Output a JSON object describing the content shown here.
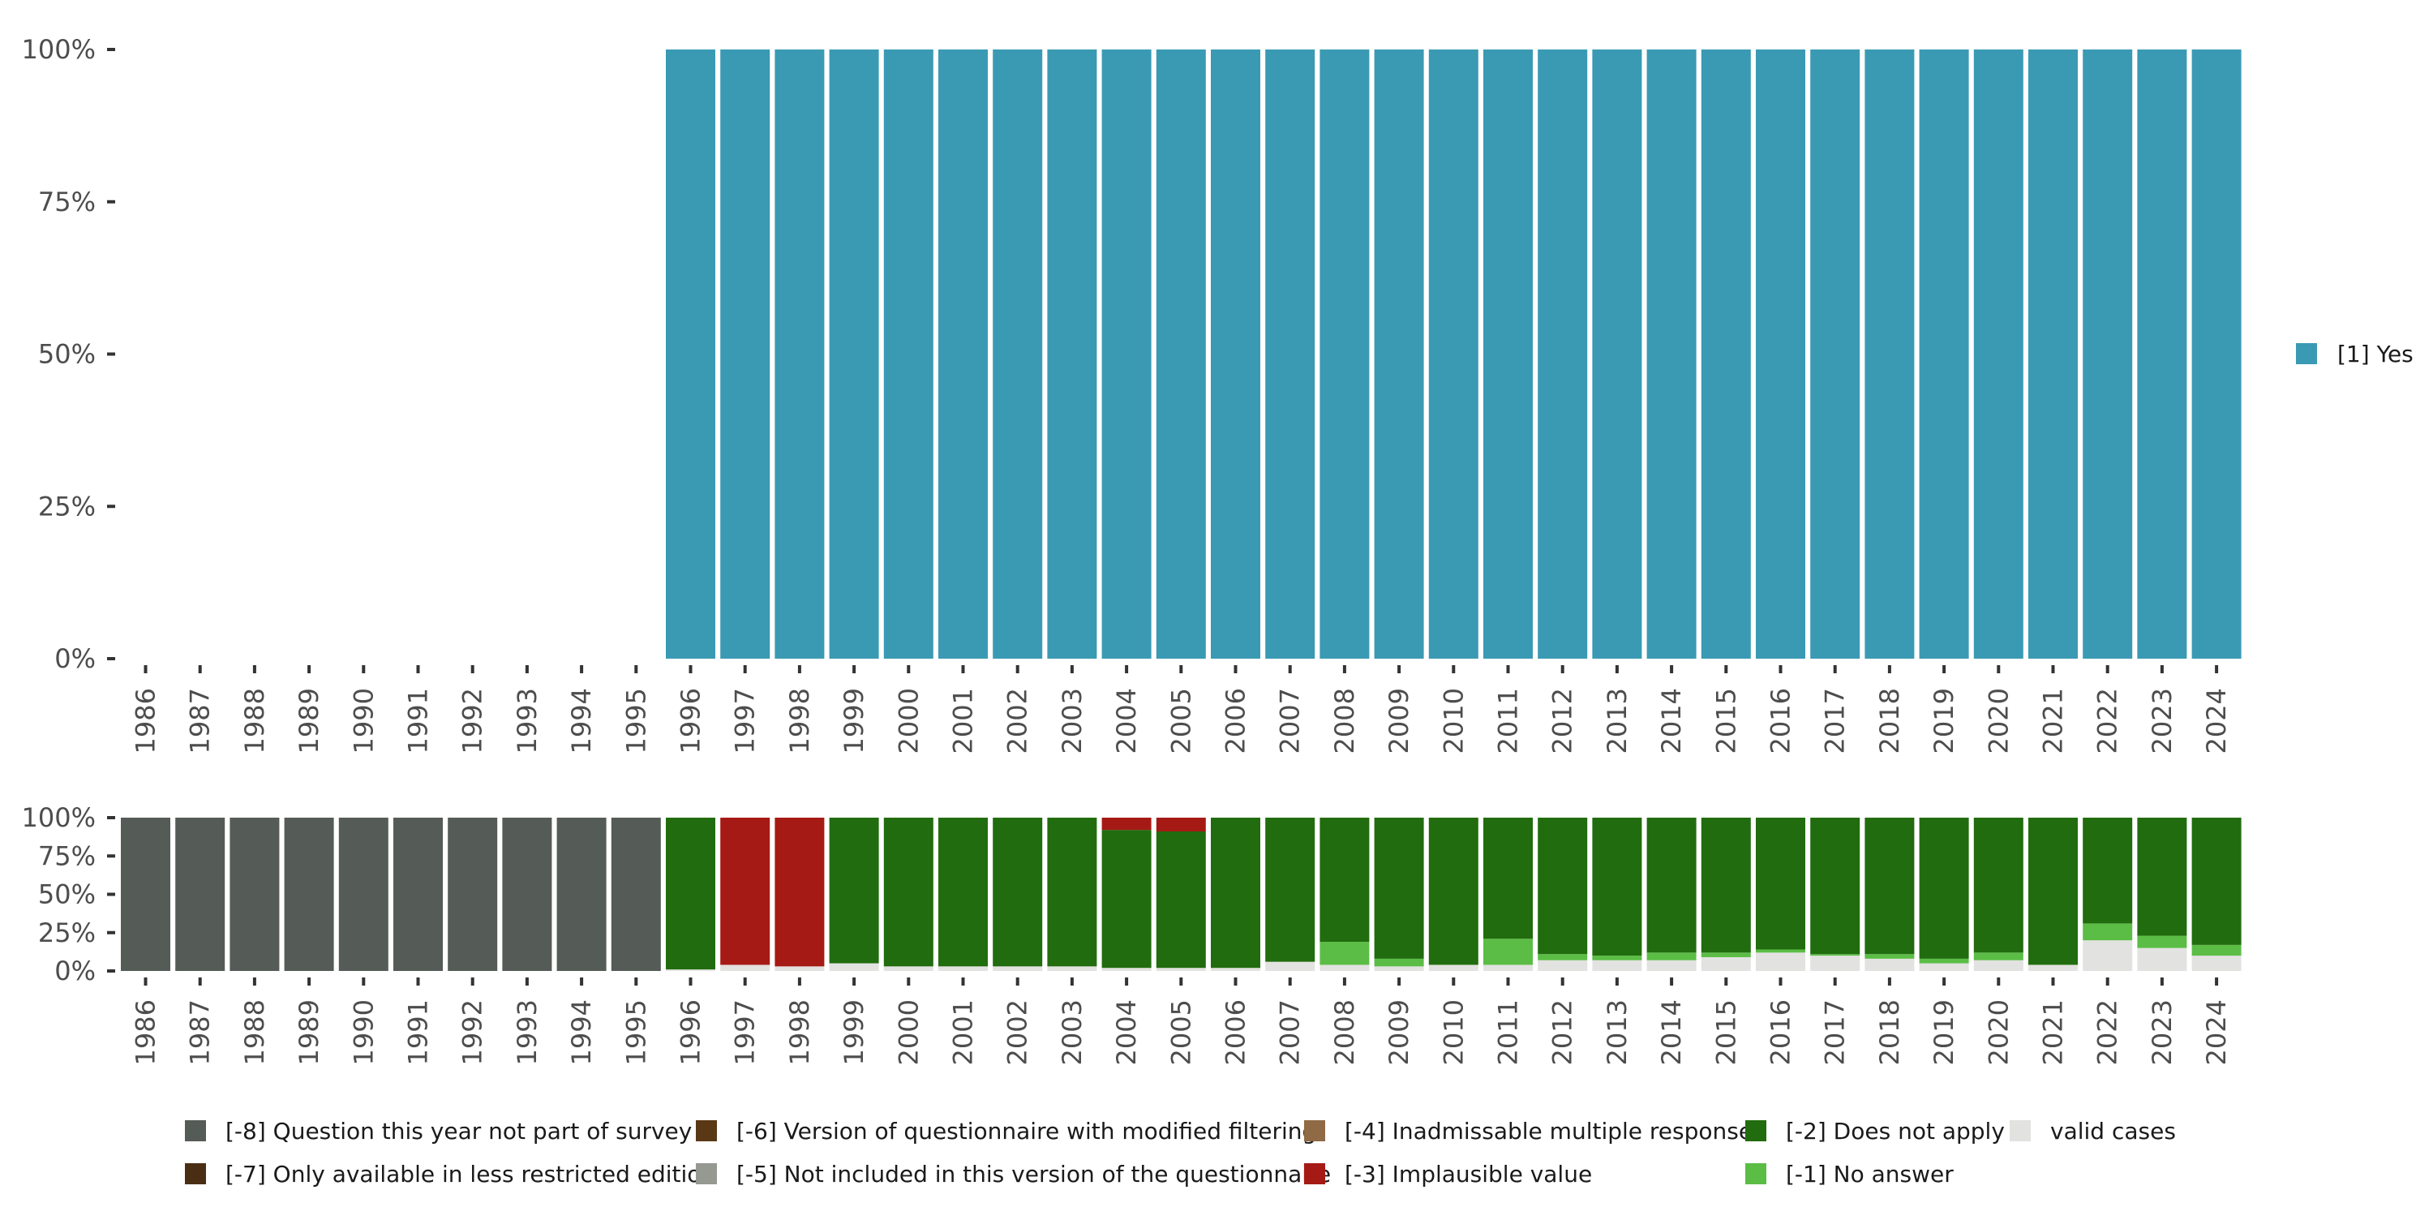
{
  "chart_data": [
    {
      "type": "bar",
      "stacked": true,
      "panel": "top",
      "categories": [
        "1986",
        "1987",
        "1988",
        "1989",
        "1990",
        "1991",
        "1992",
        "1993",
        "1994",
        "1995",
        "1996",
        "1997",
        "1998",
        "1999",
        "2000",
        "2001",
        "2002",
        "2003",
        "2004",
        "2005",
        "2006",
        "2007",
        "2008",
        "2009",
        "2010",
        "2011",
        "2012",
        "2013",
        "2014",
        "2015",
        "2016",
        "2017",
        "2018",
        "2019",
        "2020",
        "2021",
        "2022",
        "2023",
        "2024"
      ],
      "ylim": [
        0,
        100
      ],
      "yticks": [
        "0%",
        "25%",
        "50%",
        "75%",
        "100%"
      ],
      "series": [
        {
          "name": "[1] Yes",
          "color": "#3a9ab4",
          "values": [
            0,
            0,
            0,
            0,
            0,
            0,
            0,
            0,
            0,
            0,
            100,
            100,
            100,
            100,
            100,
            100,
            100,
            100,
            100,
            100,
            100,
            100,
            100,
            100,
            100,
            100,
            100,
            100,
            100,
            100,
            100,
            100,
            100,
            100,
            100,
            100,
            100,
            100,
            100
          ]
        }
      ],
      "legend": [
        "[1] Yes"
      ],
      "legend_position": "right"
    },
    {
      "type": "bar",
      "stacked": true,
      "panel": "bottom",
      "categories": [
        "1986",
        "1987",
        "1988",
        "1989",
        "1990",
        "1991",
        "1992",
        "1993",
        "1994",
        "1995",
        "1996",
        "1997",
        "1998",
        "1999",
        "2000",
        "2001",
        "2002",
        "2003",
        "2004",
        "2005",
        "2006",
        "2007",
        "2008",
        "2009",
        "2010",
        "2011",
        "2012",
        "2013",
        "2014",
        "2015",
        "2016",
        "2017",
        "2018",
        "2019",
        "2020",
        "2021",
        "2022",
        "2023",
        "2024"
      ],
      "ylim": [
        0,
        100
      ],
      "yticks": [
        "0%",
        "25%",
        "50%",
        "75%",
        "100%"
      ],
      "series": [
        {
          "name": "valid cases",
          "color": "#e2e2e0",
          "values": [
            0,
            0,
            0,
            0,
            0,
            0,
            0,
            0,
            0,
            0,
            1,
            4,
            3,
            5,
            3,
            3,
            3,
            3,
            2,
            2,
            2,
            6,
            4,
            3,
            4,
            4,
            7,
            7,
            7,
            9,
            12,
            10,
            8,
            5,
            7,
            4,
            20,
            15,
            10
          ]
        },
        {
          "name": "[-1] No answer",
          "color": "#5bbd45",
          "values": [
            0,
            0,
            0,
            0,
            0,
            0,
            0,
            0,
            0,
            0,
            0,
            0,
            0,
            0,
            0,
            0,
            0,
            0,
            0,
            0,
            0,
            0,
            15,
            5,
            0,
            17,
            4,
            3,
            5,
            3,
            2,
            1,
            3,
            3,
            5,
            0,
            11,
            8,
            7
          ]
        },
        {
          "name": "[-2] Does not apply",
          "color": "#216c0e",
          "values": [
            0,
            0,
            0,
            0,
            0,
            0,
            0,
            0,
            0,
            0,
            99,
            0,
            0,
            95,
            97,
            97,
            97,
            97,
            90,
            89,
            98,
            94,
            81,
            92,
            96,
            79,
            89,
            90,
            88,
            88,
            86,
            89,
            89,
            92,
            88,
            96,
            69,
            77,
            83
          ]
        },
        {
          "name": "[-3] Implausible value",
          "color": "#a61a15",
          "values": [
            0,
            0,
            0,
            0,
            0,
            0,
            0,
            0,
            0,
            0,
            0,
            96,
            97,
            0,
            0,
            0,
            0,
            0,
            8,
            9,
            0,
            0,
            0,
            0,
            0,
            0,
            0,
            0,
            0,
            0,
            0,
            0,
            0,
            0,
            0,
            0,
            0,
            0,
            0
          ]
        },
        {
          "name": "[-8] Question this year not part of survey",
          "color": "#555b56",
          "values": [
            100,
            100,
            100,
            100,
            100,
            100,
            100,
            100,
            100,
            100,
            0,
            0,
            0,
            0,
            0,
            0,
            0,
            0,
            0,
            0,
            0,
            0,
            0,
            0,
            0,
            0,
            0,
            0,
            0,
            0,
            0,
            0,
            0,
            0,
            0,
            0,
            0,
            0,
            0
          ]
        }
      ],
      "legend": [
        {
          "label": "[-8] Question this year not part of survey",
          "color": "#555b56"
        },
        {
          "label": "[-7] Only available in less restricted edition",
          "color": "#4a2e14"
        },
        {
          "label": "[-6] Version of questionnaire with modified filtering",
          "color": "#5a3816"
        },
        {
          "label": "[-5] Not included in this version of the questionnaire",
          "color": "#969892"
        },
        {
          "label": "[-4] Inadmissable multiple response",
          "color": "#8f6a45"
        },
        {
          "label": "[-3] Implausible value",
          "color": "#a61a15"
        },
        {
          "label": "[-2] Does not apply",
          "color": "#216c0e"
        },
        {
          "label": "[-1] No answer",
          "color": "#5bbd45"
        },
        {
          "label": "valid cases",
          "color": "#e2e2e0"
        }
      ],
      "legend_position": "bottom"
    }
  ]
}
